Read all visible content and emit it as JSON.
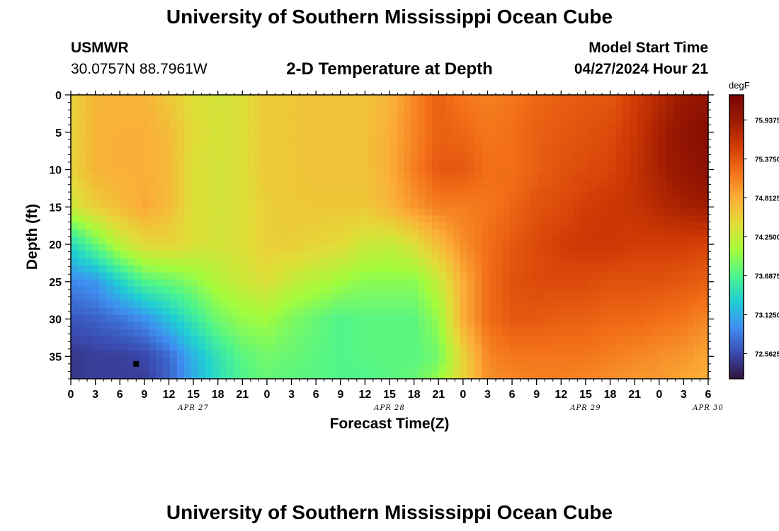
{
  "header": {
    "title": "University of Southern Mississippi Ocean Cube",
    "station": "USMWR",
    "coords": "30.0757N  88.7961W",
    "subtitle": "2-D Temperature at Depth",
    "model_start_label": "Model Start Time",
    "model_start_value": "04/27/2024 Hour 21"
  },
  "footer": {
    "title": "University of Southern Mississippi Ocean Cube"
  },
  "chart_data": {
    "type": "heatmap",
    "xlabel": "Forecast Time(Z)",
    "ylabel": "Depth (ft)",
    "x_tick_labels": [
      "0",
      "3",
      "6",
      "9",
      "12",
      "15",
      "18",
      "21",
      "0",
      "3",
      "6",
      "9",
      "12",
      "15",
      "18",
      "21",
      "0",
      "3",
      "6",
      "9",
      "12",
      "15",
      "18",
      "21",
      "0",
      "3",
      "6"
    ],
    "date_labels": [
      {
        "text": "APR 27",
        "at_hour": 15
      },
      {
        "text": "APR 28",
        "at_hour": 39
      },
      {
        "text": "APR 29",
        "at_hour": 63
      },
      {
        "text": "APR 30",
        "at_hour": 78
      }
    ],
    "xlim": [
      0,
      78
    ],
    "ylim": [
      0,
      38
    ],
    "y_ticks": [
      0,
      5,
      10,
      15,
      20,
      25,
      30,
      35
    ],
    "colorbar": {
      "unit": "degF",
      "min": 72.2,
      "max": 76.3,
      "ticks": [
        "75.9375",
        "75.3750",
        "74.8125",
        "74.2500",
        "73.6875",
        "73.1250",
        "72.5625"
      ],
      "colors": [
        "#30123b",
        "#3a4ab0",
        "#3f8ff2",
        "#1fcfd4",
        "#4df58d",
        "#a4fc3c",
        "#e2dc38",
        "#fbae38",
        "#f37119",
        "#d23b05",
        "#9c1a01",
        "#7a0403"
      ]
    },
    "depths": [
      0,
      5,
      10,
      15,
      20,
      25,
      30,
      35,
      38
    ],
    "times": [
      0,
      3,
      6,
      9,
      12,
      15,
      18,
      21,
      24,
      27,
      30,
      33,
      36,
      39,
      42,
      45,
      48,
      51,
      54,
      57,
      60,
      63,
      66,
      69,
      72,
      75,
      78
    ],
    "temperature": [
      [
        74.5,
        74.75,
        74.75,
        74.75,
        74.6,
        74.4,
        74.35,
        74.4,
        74.6,
        74.6,
        74.65,
        74.65,
        74.65,
        74.75,
        75.05,
        75.3,
        75.15,
        75.1,
        75.15,
        75.25,
        75.3,
        75.35,
        75.35,
        75.55,
        75.75,
        75.95,
        76.05
      ],
      [
        74.5,
        74.75,
        74.8,
        74.8,
        74.7,
        74.45,
        74.35,
        74.4,
        74.6,
        74.6,
        74.65,
        74.65,
        74.65,
        74.8,
        75.05,
        75.3,
        75.25,
        75.15,
        75.2,
        75.3,
        75.35,
        75.4,
        75.45,
        75.6,
        75.85,
        76.05,
        76.15
      ],
      [
        74.5,
        74.75,
        74.8,
        74.8,
        74.7,
        74.4,
        74.35,
        74.4,
        74.6,
        74.6,
        74.65,
        74.65,
        74.65,
        74.8,
        75.1,
        75.35,
        75.35,
        75.2,
        75.2,
        75.3,
        75.4,
        75.45,
        75.5,
        75.65,
        75.85,
        76.0,
        76.1
      ],
      [
        74.3,
        74.55,
        74.7,
        74.85,
        74.7,
        74.4,
        74.35,
        74.4,
        74.55,
        74.6,
        74.6,
        74.6,
        74.6,
        74.75,
        74.95,
        75.1,
        75.1,
        75.15,
        75.25,
        75.4,
        75.45,
        75.55,
        75.6,
        75.65,
        75.75,
        75.85,
        75.9
      ],
      [
        73.4,
        73.8,
        74.2,
        74.45,
        74.5,
        74.4,
        74.35,
        74.4,
        74.55,
        74.55,
        74.5,
        74.45,
        74.3,
        74.25,
        74.4,
        74.7,
        75.0,
        75.2,
        75.35,
        75.45,
        75.55,
        75.6,
        75.6,
        75.55,
        75.55,
        75.55,
        75.5
      ],
      [
        72.9,
        73.0,
        73.35,
        73.7,
        73.8,
        73.95,
        74.15,
        74.3,
        74.4,
        74.25,
        74.15,
        74.05,
        73.95,
        73.95,
        73.95,
        74.25,
        74.8,
        75.2,
        75.4,
        75.45,
        75.45,
        75.45,
        75.4,
        75.4,
        75.4,
        75.35,
        75.3
      ],
      [
        72.65,
        72.7,
        72.8,
        72.95,
        73.25,
        73.55,
        73.85,
        74.0,
        74.05,
        73.9,
        73.8,
        73.7,
        73.75,
        73.75,
        73.75,
        74.0,
        74.8,
        75.2,
        75.35,
        75.35,
        75.3,
        75.3,
        75.25,
        75.25,
        75.2,
        75.15,
        75.05
      ],
      [
        72.45,
        72.5,
        72.5,
        72.55,
        72.75,
        73.15,
        73.5,
        73.75,
        73.85,
        73.8,
        73.75,
        73.7,
        73.75,
        73.75,
        73.75,
        73.85,
        74.5,
        75.05,
        75.15,
        75.15,
        75.15,
        75.15,
        75.1,
        75.05,
        75.0,
        74.95,
        74.85
      ],
      [
        72.45,
        72.5,
        72.5,
        72.5,
        72.7,
        73.1,
        73.45,
        73.7,
        73.8,
        73.75,
        73.75,
        73.7,
        73.7,
        73.75,
        73.8,
        74.0,
        74.5,
        75.0,
        75.05,
        75.1,
        75.1,
        75.05,
        75.0,
        74.95,
        74.95,
        74.85,
        74.8
      ]
    ],
    "annotations": [
      {
        "type": "marker",
        "hour": 8,
        "depth": 36
      }
    ]
  }
}
